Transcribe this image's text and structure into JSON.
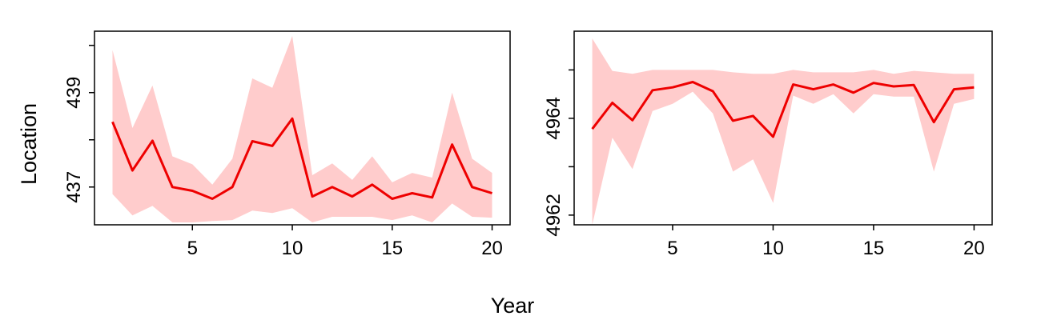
{
  "chart_data": [
    {
      "type": "line",
      "xlabel": "Year",
      "ylabel": "Location",
      "xlim": [
        0.1,
        20.9
      ],
      "ylim": [
        436.2,
        440.3
      ],
      "x_ticks": [
        5,
        10,
        15,
        20
      ],
      "y_ticks": [
        437,
        439
      ],
      "y_minor_ticks": [
        438,
        440
      ],
      "grid": false,
      "colors": {
        "line": "#ee0000",
        "band": "#ffcccc"
      },
      "x": [
        1,
        2,
        3,
        4,
        5,
        6,
        7,
        8,
        9,
        10,
        11,
        12,
        13,
        14,
        15,
        16,
        17,
        18,
        19,
        20
      ],
      "series": [
        {
          "values": [
            438.38,
            437.35,
            437.98,
            437.0,
            436.92,
            436.75,
            437.0,
            437.97,
            437.87,
            438.45,
            436.8,
            437.0,
            436.8,
            437.05,
            436.75,
            436.87,
            436.78,
            437.9,
            437.0,
            436.87
          ]
        }
      ],
      "band": {
        "lower": [
          436.85,
          436.4,
          436.6,
          436.25,
          436.25,
          436.28,
          436.3,
          436.5,
          436.45,
          436.55,
          436.25,
          436.37,
          436.37,
          436.37,
          436.3,
          436.4,
          436.25,
          436.65,
          436.37,
          436.35
        ],
        "upper": [
          439.9,
          438.25,
          439.15,
          437.65,
          437.48,
          437.05,
          437.6,
          439.3,
          439.1,
          440.2,
          437.25,
          437.5,
          437.15,
          437.65,
          437.1,
          437.3,
          437.2,
          439.0,
          437.6,
          437.3
        ]
      }
    },
    {
      "type": "line",
      "xlabel": "Year",
      "ylabel": "Location",
      "xlim": [
        0.1,
        20.9
      ],
      "ylim": [
        4961.8,
        4965.8
      ],
      "x_ticks": [
        5,
        10,
        15,
        20
      ],
      "y_ticks": [
        4962,
        4964
      ],
      "y_minor_ticks": [
        4963,
        4965
      ],
      "grid": false,
      "colors": {
        "line": "#ee0000",
        "band": "#ffcccc"
      },
      "x": [
        1,
        2,
        3,
        4,
        5,
        6,
        7,
        8,
        9,
        10,
        11,
        12,
        13,
        14,
        15,
        16,
        17,
        18,
        19,
        20
      ],
      "series": [
        {
          "values": [
            4963.78,
            4964.32,
            4963.96,
            4964.58,
            4964.64,
            4964.75,
            4964.56,
            4963.95,
            4964.05,
            4963.62,
            4964.7,
            4964.6,
            4964.7,
            4964.53,
            4964.73,
            4964.66,
            4964.69,
            4963.92,
            4964.6,
            4964.64
          ]
        }
      ],
      "band": {
        "lower": [
          4961.8,
          4963.6,
          4962.95,
          4964.15,
          4964.3,
          4964.55,
          4964.1,
          4962.9,
          4963.15,
          4962.25,
          4964.47,
          4964.3,
          4964.5,
          4964.1,
          4964.5,
          4964.45,
          4964.45,
          4962.9,
          4964.3,
          4964.4
        ],
        "upper": [
          4965.65,
          4964.98,
          4964.92,
          4965.0,
          4965.0,
          4965.0,
          4965.0,
          4964.95,
          4964.92,
          4964.92,
          4965.0,
          4964.95,
          4964.95,
          4964.95,
          4965.0,
          4964.92,
          4964.98,
          4964.95,
          4964.92,
          4964.92
        ]
      }
    }
  ]
}
